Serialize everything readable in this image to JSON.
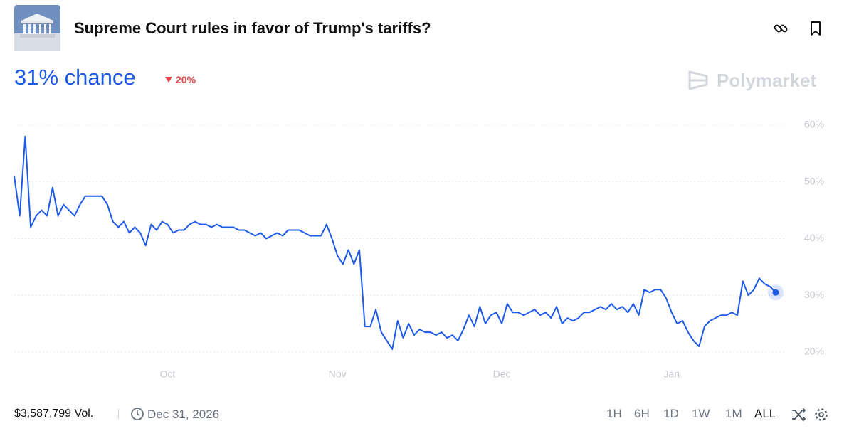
{
  "header": {
    "title": "Supreme Court rules in favor of Trump's tariffs?"
  },
  "odds": {
    "chance": "31% chance",
    "change": "20%"
  },
  "brand": "Polymarket",
  "chart_data": {
    "type": "line",
    "color": "#1d5ae8",
    "grid": true,
    "ylim": [
      20,
      60
    ],
    "yticks": [
      {
        "value": 20,
        "label": "20%"
      },
      {
        "value": 30,
        "label": "30%"
      },
      {
        "value": 40,
        "label": "40%"
      },
      {
        "value": 50,
        "label": "50%"
      },
      {
        "value": 60,
        "label": "60%"
      }
    ],
    "categories": [
      null,
      null,
      null,
      null,
      null,
      null,
      null,
      null,
      null,
      null,
      null,
      null,
      null,
      null,
      null,
      null,
      null,
      null,
      null,
      null,
      null,
      null,
      null,
      null,
      null,
      null,
      null,
      null,
      "Oct",
      null,
      null,
      null,
      null,
      null,
      null,
      null,
      null,
      null,
      null,
      null,
      null,
      null,
      null,
      null,
      null,
      null,
      null,
      null,
      null,
      null,
      null,
      null,
      null,
      null,
      null,
      null,
      null,
      null,
      null,
      "Nov",
      null,
      null,
      null,
      null,
      null,
      null,
      null,
      null,
      null,
      null,
      null,
      null,
      null,
      null,
      null,
      null,
      null,
      null,
      null,
      null,
      null,
      null,
      null,
      null,
      null,
      null,
      null,
      null,
      null,
      "Dec",
      null,
      null,
      null,
      null,
      null,
      null,
      null,
      null,
      null,
      null,
      null,
      null,
      null,
      null,
      null,
      null,
      null,
      null,
      null,
      null,
      null,
      null,
      null,
      null,
      null,
      null,
      null,
      null,
      null,
      null,
      "Jan",
      null,
      null,
      null,
      null,
      null,
      null,
      null,
      null,
      null,
      null,
      null,
      null,
      null,
      null,
      null,
      null,
      null,
      null,
      null
    ],
    "values": [
      51,
      44,
      58,
      42,
      44,
      45,
      44,
      49,
      44,
      46,
      45,
      44,
      46,
      47.5,
      47.5,
      47.5,
      47.5,
      46,
      43,
      42,
      43,
      41,
      42,
      41,
      38.8,
      42.5,
      41.5,
      43,
      42.5,
      41,
      41.5,
      41.5,
      42.5,
      43,
      42.5,
      42.5,
      42,
      42.5,
      42,
      42,
      42,
      41.5,
      41.5,
      41,
      40.5,
      41,
      40,
      40.5,
      41,
      40.5,
      41.5,
      41.5,
      41.5,
      41,
      40.5,
      40.5,
      40.5,
      42.5,
      40,
      37,
      35.5,
      38,
      35.5,
      38,
      24.5,
      24.5,
      27.5,
      23.5,
      22,
      20.5,
      25.5,
      22.5,
      25,
      23,
      24,
      23.5,
      23.5,
      23,
      23.5,
      22.5,
      23,
      22,
      24,
      26.5,
      24.5,
      28,
      25,
      26.5,
      27,
      25,
      28.5,
      27,
      27,
      26.5,
      27,
      27.5,
      26.5,
      27,
      26,
      28,
      25,
      26,
      25.5,
      26,
      27,
      27,
      27.5,
      28,
      27.5,
      28.5,
      27.5,
      28,
      27,
      28.5,
      26.5,
      31,
      30.5,
      31,
      31,
      29.5,
      27,
      25,
      25.5,
      23.5,
      22,
      21,
      24.5,
      25.5,
      26,
      26.5,
      26.5,
      27,
      26.5,
      32.5,
      30,
      31,
      33,
      32,
      31.5,
      30.5
    ]
  },
  "footer": {
    "volume": "$3,587,799 Vol.",
    "end_date": "Dec 31, 2026",
    "timeframes": [
      "1H",
      "6H",
      "1D",
      "1W",
      "1M",
      "ALL"
    ],
    "active": "ALL"
  }
}
